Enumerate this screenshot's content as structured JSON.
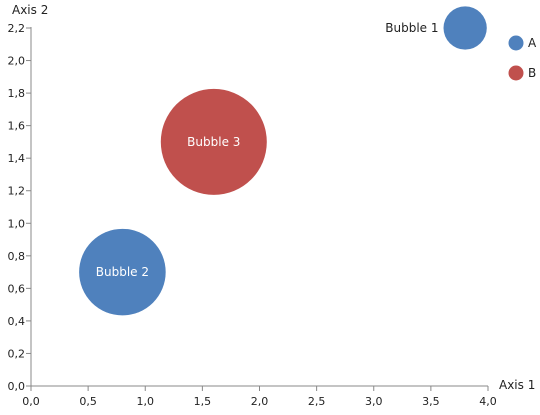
{
  "chart_data": {
    "type": "bubble",
    "xlabel": "Axis 1",
    "ylabel": "Axis 2",
    "xlim": [
      0,
      4
    ],
    "ylim": [
      0,
      2.2
    ],
    "x_ticks": [
      "0,0",
      "0,5",
      "1,0",
      "1,5",
      "2,0",
      "2,5",
      "3,0",
      "3,5",
      "4,0"
    ],
    "y_ticks": [
      "0,0",
      "0,2",
      "0,4",
      "0,6",
      "0,8",
      "1,0",
      "1,2",
      "1,4",
      "1,6",
      "1,8",
      "2,0",
      "2,2"
    ],
    "grid": false,
    "legend_position": "top-right",
    "series": [
      {
        "name": "A",
        "color": "#4f81bd",
        "points": [
          {
            "label": "Bubble 1",
            "x": 3.8,
            "y": 2.2,
            "size": 1,
            "label_position": "left",
            "label_color": "#222222"
          },
          {
            "label": "Bubble 2",
            "x": 0.8,
            "y": 0.7,
            "size": 4,
            "label_position": "center",
            "label_color": "#ffffff"
          }
        ]
      },
      {
        "name": "B",
        "color": "#c0504d",
        "points": [
          {
            "label": "Bubble 3",
            "x": 1.6,
            "y": 1.5,
            "size": 6,
            "label_position": "center",
            "label_color": "#ffffff"
          }
        ]
      }
    ]
  }
}
